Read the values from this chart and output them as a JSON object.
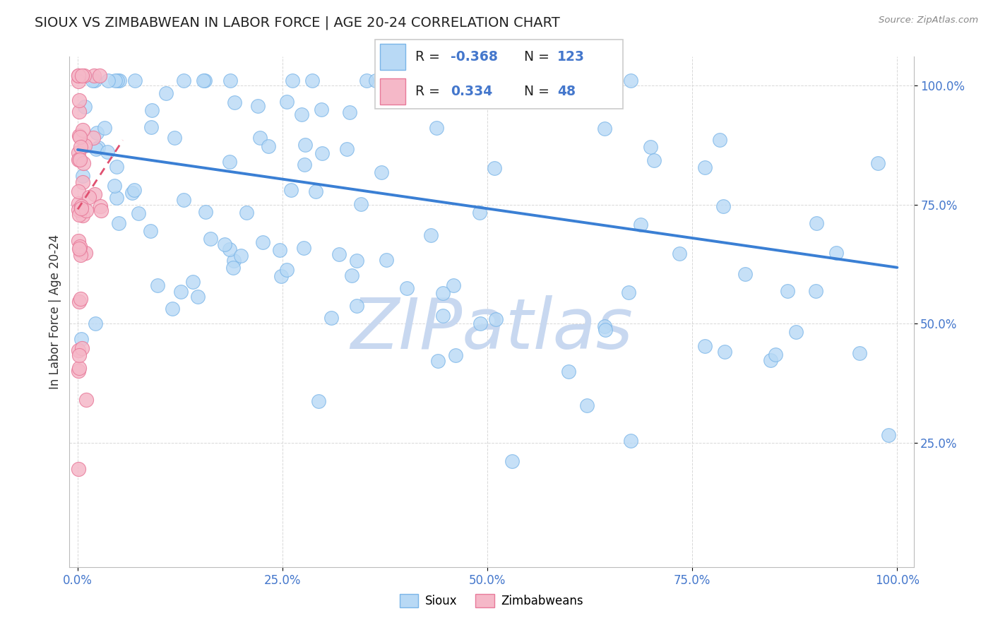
{
  "title": "SIOUX VS ZIMBABWEAN IN LABOR FORCE | AGE 20-24 CORRELATION CHART",
  "source_text": "Source: ZipAtlas.com",
  "ylabel": "In Labor Force | Age 20-24",
  "xlim": [
    -0.01,
    1.02
  ],
  "ylim": [
    -0.01,
    1.06
  ],
  "xtick_vals": [
    0.0,
    0.25,
    0.5,
    0.75,
    1.0
  ],
  "xtick_labels": [
    "0.0%",
    "25.0%",
    "50.0%",
    "75.0%",
    "100.0%"
  ],
  "ytick_vals": [
    0.25,
    0.5,
    0.75,
    1.0
  ],
  "ytick_labels": [
    "25.0%",
    "50.0%",
    "75.0%",
    "100.0%"
  ],
  "blue_color": "#b8d9f5",
  "pink_color": "#f5b8c8",
  "blue_edge": "#7ab5e8",
  "pink_edge": "#e87a9a",
  "trend_blue_color": "#3a7fd4",
  "trend_pink_color": "#e05070",
  "watermark_color": "#c8d8f0",
  "background_color": "#ffffff",
  "grid_color": "#d8d8d8",
  "title_color": "#222222",
  "tick_color": "#4477cc",
  "ylabel_color": "#333333",
  "legend_text_color": "#222222",
  "legend_val_color": "#4477cc",
  "source_color": "#888888",
  "sioux_trend_start_y": 0.865,
  "sioux_trend_end_y": 0.618,
  "zimb_trend_start_x": 0.0,
  "zimb_trend_start_y": 0.74,
  "zimb_trend_end_x": 0.055,
  "zimb_trend_end_y": 0.885
}
